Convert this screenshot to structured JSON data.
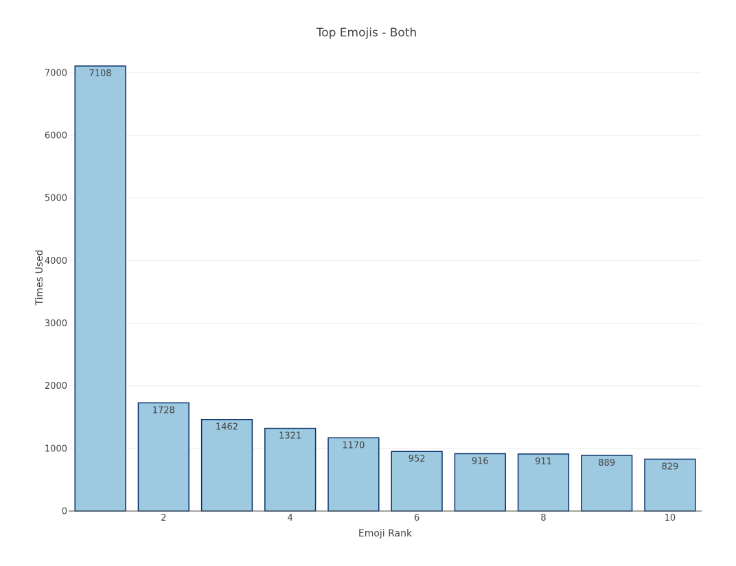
{
  "chart_data": {
    "type": "bar",
    "title": "Top Emojis - Both",
    "xlabel": "Emoji Rank",
    "ylabel": "Times Used",
    "x": [
      1,
      2,
      3,
      4,
      5,
      6,
      7,
      8,
      9,
      10
    ],
    "values": [
      7108,
      1728,
      1462,
      1321,
      1170,
      952,
      916,
      911,
      889,
      829
    ],
    "data_labels": [
      "7108",
      "1728",
      "1462",
      "1321",
      "1170",
      "952",
      "916",
      "911",
      "889",
      "829"
    ],
    "x_ticks": [
      2,
      4,
      6,
      8,
      10
    ],
    "y_ticks": [
      0,
      1000,
      2000,
      3000,
      4000,
      5000,
      6000,
      7000
    ],
    "ylim": [
      0,
      7482
    ],
    "xlim": [
      0.5,
      10.5
    ],
    "grid": true,
    "legend": false,
    "colors": {
      "bar_fill": "#9ecae1",
      "bar_outline": "#08306b",
      "grid": "#ececec",
      "text": "#444444"
    }
  }
}
